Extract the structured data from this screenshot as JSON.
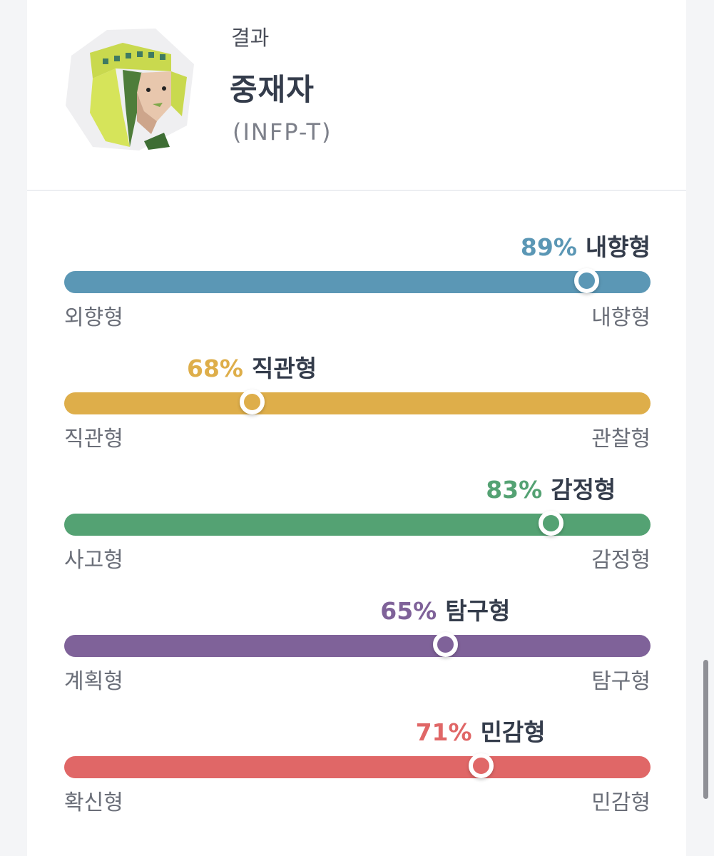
{
  "result": {
    "label": "결과",
    "type_name": "중재자",
    "type_code": "(INFP-T)"
  },
  "avatar_icon": "mediator-avatar-icon",
  "traits": [
    {
      "percent": 89,
      "percent_label": "89%",
      "name": "내향형",
      "left_label": "외향형",
      "right_label": "내향형",
      "color": "#5b97b5"
    },
    {
      "percent": 68,
      "percent_label": "68%",
      "name": "직관형",
      "left_label": "직관형",
      "right_label": "관찰형",
      "color": "#deae4a"
    },
    {
      "percent": 83,
      "percent_label": "83%",
      "name": "감정형",
      "left_label": "사고형",
      "right_label": "감정형",
      "color": "#54a273"
    },
    {
      "percent": 65,
      "percent_label": "65%",
      "name": "탐구형",
      "left_label": "계획형",
      "right_label": "탐구형",
      "color": "#7f6299"
    },
    {
      "percent": 71,
      "percent_label": "71%",
      "name": "민감형",
      "left_label": "확신형",
      "right_label": "민감형",
      "color": "#e06767"
    }
  ]
}
